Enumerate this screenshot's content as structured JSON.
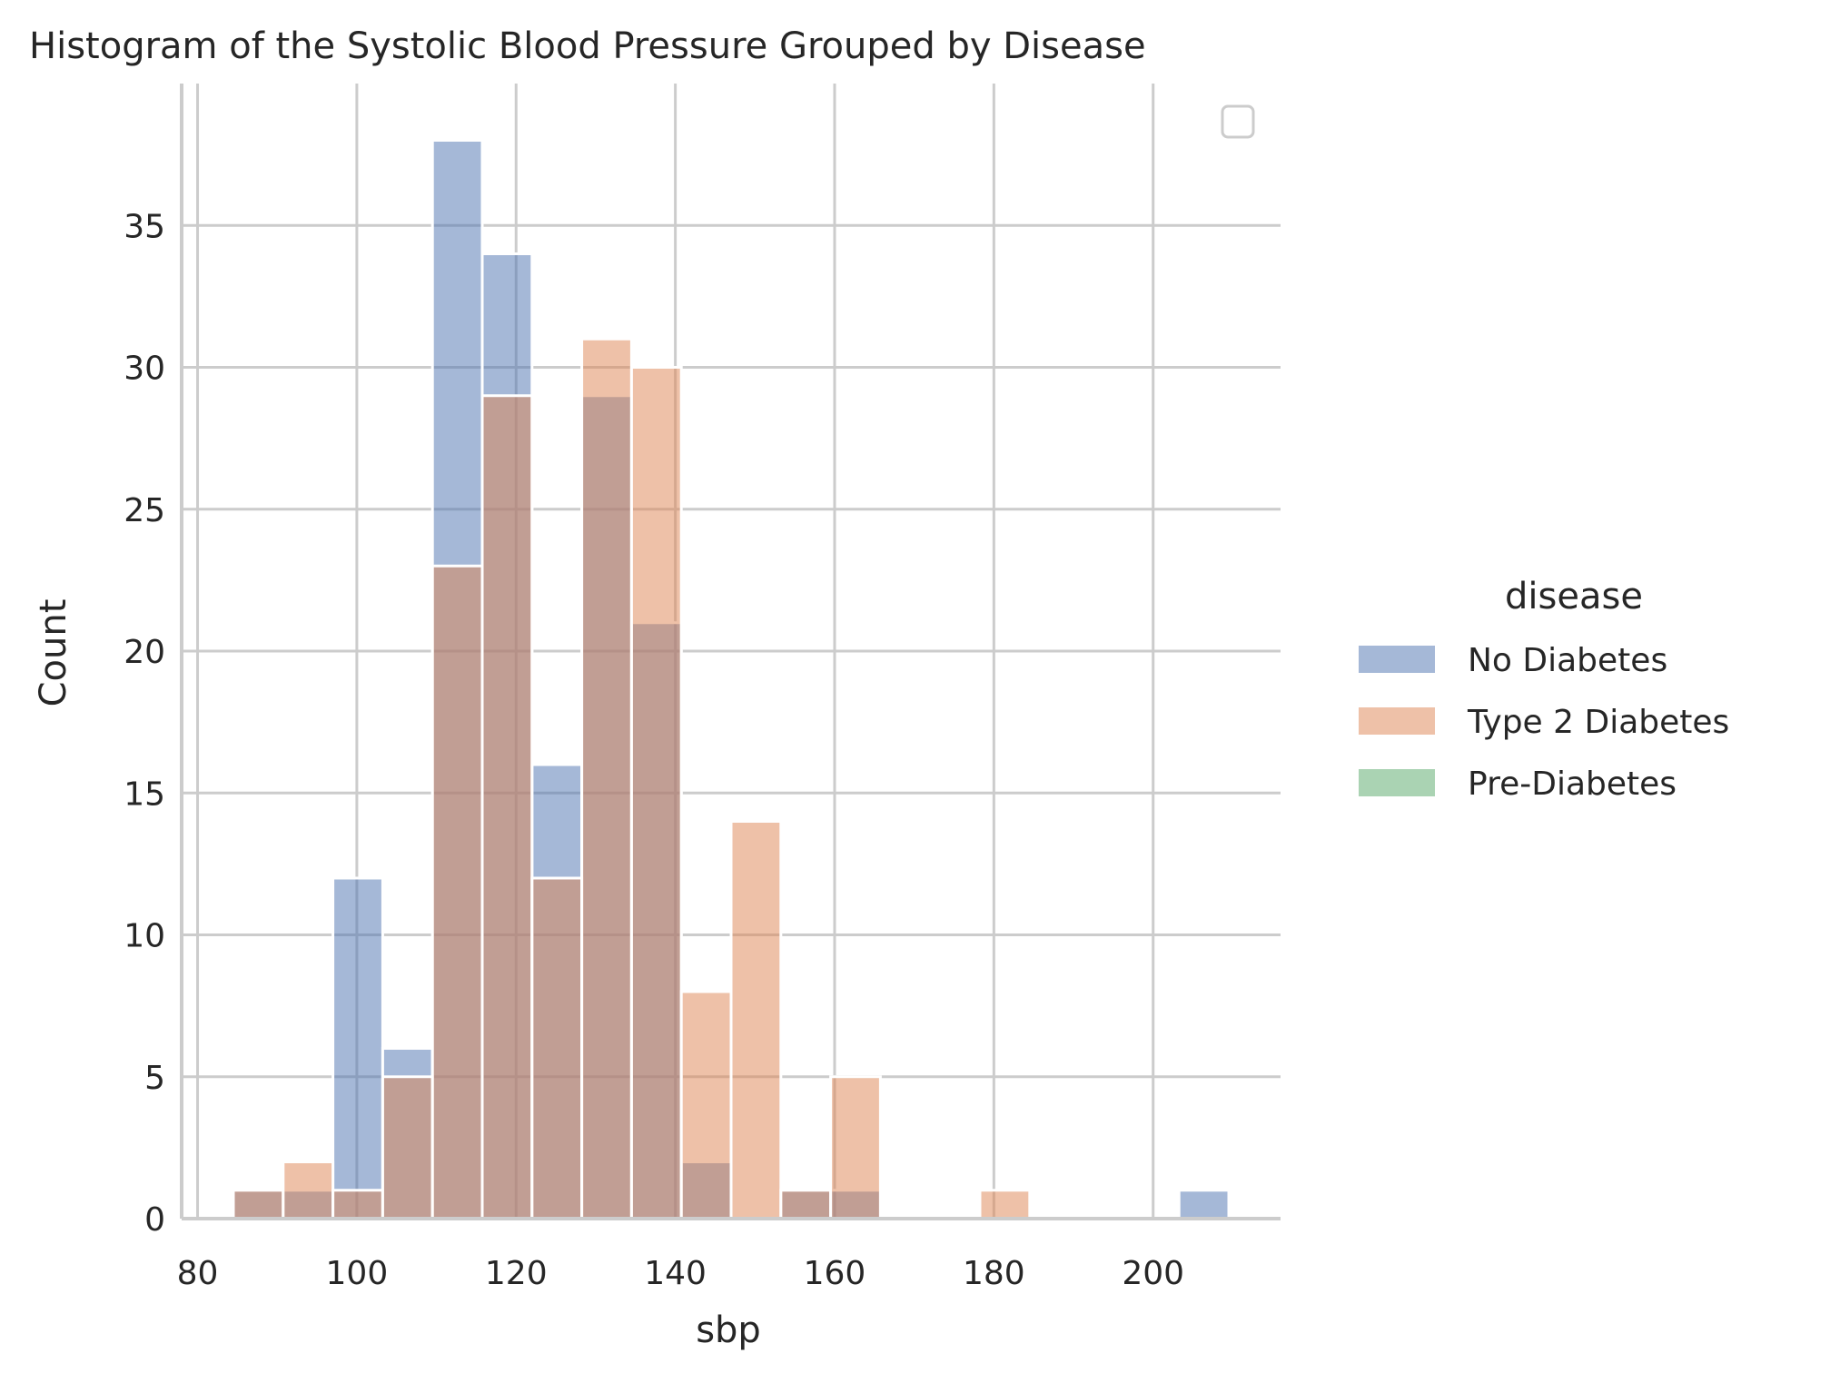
{
  "chart_data": {
    "type": "bar",
    "title": "Histogram of the Systolic Blood Pressure Grouped by Disease",
    "xlabel": "sbp",
    "ylabel": "Count",
    "xlim": [
      78,
      216
    ],
    "ylim": [
      0,
      40
    ],
    "xticks": [
      80,
      100,
      120,
      140,
      160,
      180,
      200
    ],
    "yticks": [
      0,
      5,
      10,
      15,
      20,
      25,
      30,
      35
    ],
    "grid": true,
    "bin_edges": [
      84.5,
      90.75,
      97.0,
      103.25,
      109.5,
      115.75,
      122.0,
      128.25,
      134.5,
      140.75,
      147.0,
      153.25,
      159.5,
      165.75,
      172.0,
      178.25,
      184.5,
      190.75,
      197.0,
      203.25,
      209.5
    ],
    "series": [
      {
        "name": "No Diabetes",
        "color": "#4c72b0",
        "values": [
          1,
          1,
          12,
          6,
          38,
          34,
          16,
          29,
          21,
          2,
          0,
          1,
          1,
          0,
          0,
          0,
          0,
          0,
          0,
          1
        ]
      },
      {
        "name": "Type 2 Diabetes",
        "color": "#dd8452",
        "values": [
          1,
          2,
          1,
          5,
          23,
          29,
          12,
          31,
          30,
          8,
          14,
          1,
          5,
          0,
          0,
          1,
          0,
          0,
          0,
          0
        ]
      },
      {
        "name": "Pre-Diabetes",
        "color": "#55a868",
        "values": [
          0,
          0,
          0,
          0,
          0,
          0,
          0,
          0,
          0,
          0,
          0,
          0,
          0,
          0,
          0,
          0,
          0,
          0,
          0,
          0
        ]
      }
    ],
    "legend": {
      "title": "disease",
      "placement": "right",
      "entries": [
        "No Diabetes",
        "Type 2 Diabetes",
        "Pre-Diabetes"
      ]
    }
  }
}
